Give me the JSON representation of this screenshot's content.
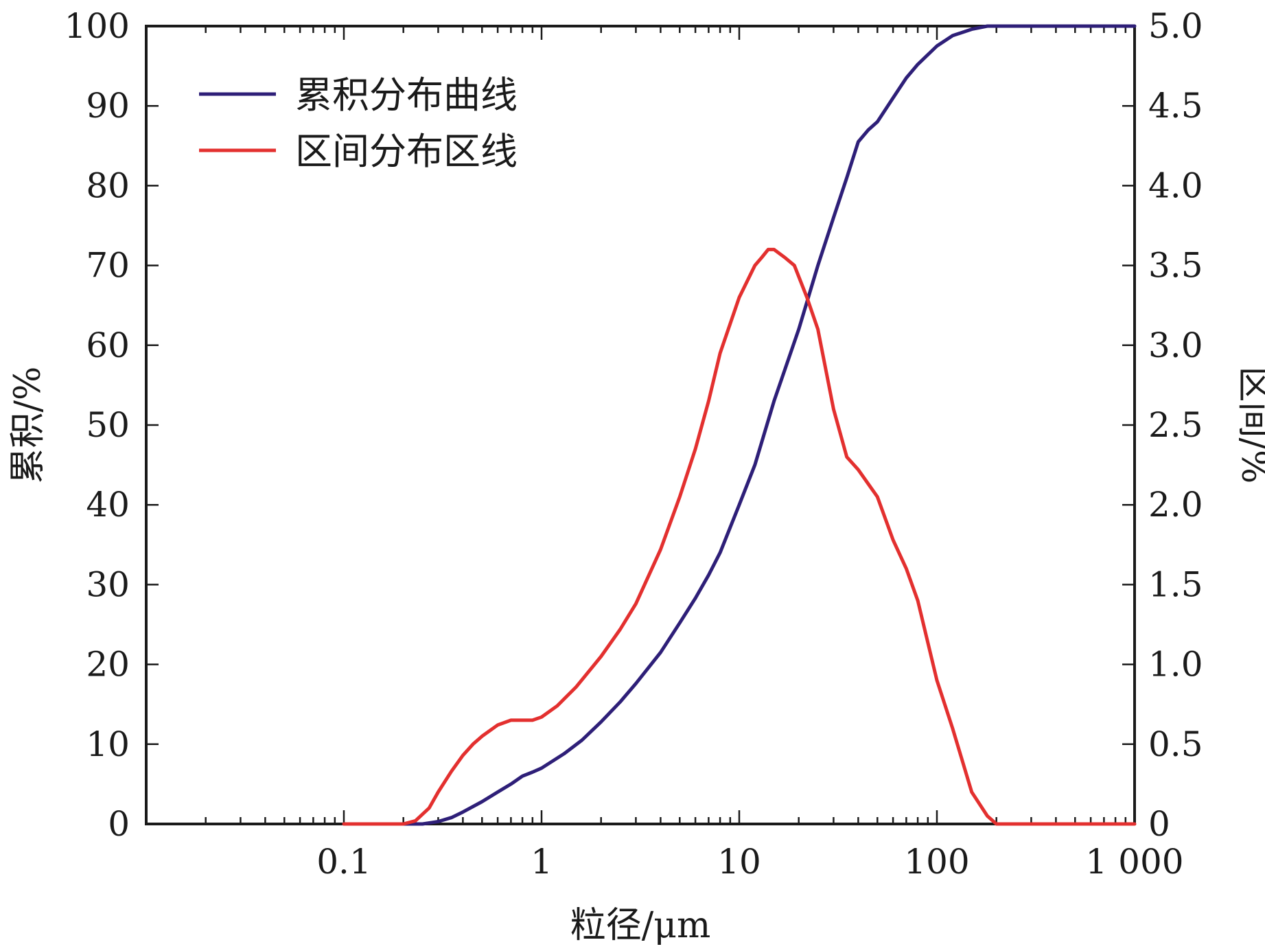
{
  "chart_data": {
    "type": "line",
    "x_scale": "log",
    "xlabel": "粒径/μm",
    "ylabel_left": "累积/%",
    "ylabel_right": "区间/%",
    "xlim": [
      0.01,
      1000
    ],
    "ylim_left": [
      0,
      100
    ],
    "ylim_right": [
      0,
      5.0
    ],
    "x_ticks": [
      {
        "value": 0.1,
        "label": "0.1"
      },
      {
        "value": 1,
        "label": "1"
      },
      {
        "value": 10,
        "label": "10"
      },
      {
        "value": 100,
        "label": "100"
      },
      {
        "value": 1000,
        "label": "1 000"
      }
    ],
    "y_left_ticks": [
      {
        "value": 0,
        "label": "0"
      },
      {
        "value": 10,
        "label": "10"
      },
      {
        "value": 20,
        "label": "20"
      },
      {
        "value": 30,
        "label": "30"
      },
      {
        "value": 40,
        "label": "40"
      },
      {
        "value": 50,
        "label": "50"
      },
      {
        "value": 60,
        "label": "60"
      },
      {
        "value": 70,
        "label": "70"
      },
      {
        "value": 80,
        "label": "80"
      },
      {
        "value": 90,
        "label": "90"
      },
      {
        "value": 100,
        "label": "100"
      }
    ],
    "y_right_ticks": [
      {
        "value": 0,
        "label": "0"
      },
      {
        "value": 0.5,
        "label": "0.5"
      },
      {
        "value": 1.0,
        "label": "1.0"
      },
      {
        "value": 1.5,
        "label": "1.5"
      },
      {
        "value": 2.0,
        "label": "2.0"
      },
      {
        "value": 2.5,
        "label": "2.5"
      },
      {
        "value": 3.0,
        "label": "3.0"
      },
      {
        "value": 3.5,
        "label": "3.5"
      },
      {
        "value": 4.0,
        "label": "4.0"
      },
      {
        "value": 4.5,
        "label": "4.5"
      },
      {
        "value": 5.0,
        "label": "5.0"
      }
    ],
    "legend_position": "top-left",
    "series": [
      {
        "name": "累积分布曲线",
        "axis": "left",
        "color": "#2e1f78",
        "points": [
          [
            0.1,
            0
          ],
          [
            0.25,
            0
          ],
          [
            0.3,
            0.3
          ],
          [
            0.35,
            0.8
          ],
          [
            0.4,
            1.5
          ],
          [
            0.5,
            2.8
          ],
          [
            0.6,
            4.0
          ],
          [
            0.7,
            5.0
          ],
          [
            0.8,
            6.0
          ],
          [
            0.9,
            6.5
          ],
          [
            1.0,
            7.0
          ],
          [
            1.3,
            8.8
          ],
          [
            1.6,
            10.5
          ],
          [
            2.0,
            12.8
          ],
          [
            2.5,
            15.3
          ],
          [
            3.0,
            17.6
          ],
          [
            4.0,
            21.5
          ],
          [
            5.0,
            25.2
          ],
          [
            6.0,
            28.3
          ],
          [
            7.0,
            31.2
          ],
          [
            8.0,
            34.0
          ],
          [
            10.0,
            40.0
          ],
          [
            12.0,
            45.0
          ],
          [
            15.0,
            53.0
          ],
          [
            20.0,
            62.0
          ],
          [
            25.0,
            70.0
          ],
          [
            30.0,
            76.0
          ],
          [
            35.0,
            81.0
          ],
          [
            40.0,
            85.5
          ],
          [
            45.0,
            87.0
          ],
          [
            50.0,
            88.0
          ],
          [
            60.0,
            91.0
          ],
          [
            70.0,
            93.5
          ],
          [
            80.0,
            95.2
          ],
          [
            100.0,
            97.5
          ],
          [
            120.0,
            98.8
          ],
          [
            150.0,
            99.6
          ],
          [
            180.0,
            100
          ],
          [
            200.0,
            100
          ],
          [
            1000.0,
            100
          ]
        ]
      },
      {
        "name": "区间分布区线",
        "axis": "right",
        "color": "#e3302f",
        "points": [
          [
            0.1,
            0
          ],
          [
            0.2,
            0
          ],
          [
            0.23,
            0.02
          ],
          [
            0.27,
            0.1
          ],
          [
            0.3,
            0.2
          ],
          [
            0.35,
            0.33
          ],
          [
            0.4,
            0.43
          ],
          [
            0.45,
            0.5
          ],
          [
            0.5,
            0.55
          ],
          [
            0.6,
            0.62
          ],
          [
            0.7,
            0.65
          ],
          [
            0.8,
            0.65
          ],
          [
            0.9,
            0.65
          ],
          [
            1.0,
            0.67
          ],
          [
            1.2,
            0.74
          ],
          [
            1.5,
            0.86
          ],
          [
            2.0,
            1.05
          ],
          [
            2.5,
            1.22
          ],
          [
            3.0,
            1.38
          ],
          [
            4.0,
            1.72
          ],
          [
            5.0,
            2.05
          ],
          [
            6.0,
            2.35
          ],
          [
            7.0,
            2.65
          ],
          [
            8.0,
            2.95
          ],
          [
            10.0,
            3.3
          ],
          [
            12.0,
            3.5
          ],
          [
            13.0,
            3.55
          ],
          [
            14.0,
            3.6
          ],
          [
            15.0,
            3.6
          ],
          [
            17.0,
            3.55
          ],
          [
            19.0,
            3.5
          ],
          [
            22.0,
            3.3
          ],
          [
            25.0,
            3.1
          ],
          [
            30.0,
            2.6
          ],
          [
            35.0,
            2.3
          ],
          [
            40.0,
            2.22
          ],
          [
            50.0,
            2.05
          ],
          [
            60.0,
            1.78
          ],
          [
            70.0,
            1.6
          ],
          [
            80.0,
            1.4
          ],
          [
            100.0,
            0.9
          ],
          [
            120.0,
            0.6
          ],
          [
            150.0,
            0.2
          ],
          [
            180.0,
            0.05
          ],
          [
            200.0,
            0
          ],
          [
            1000.0,
            0
          ]
        ]
      }
    ]
  }
}
